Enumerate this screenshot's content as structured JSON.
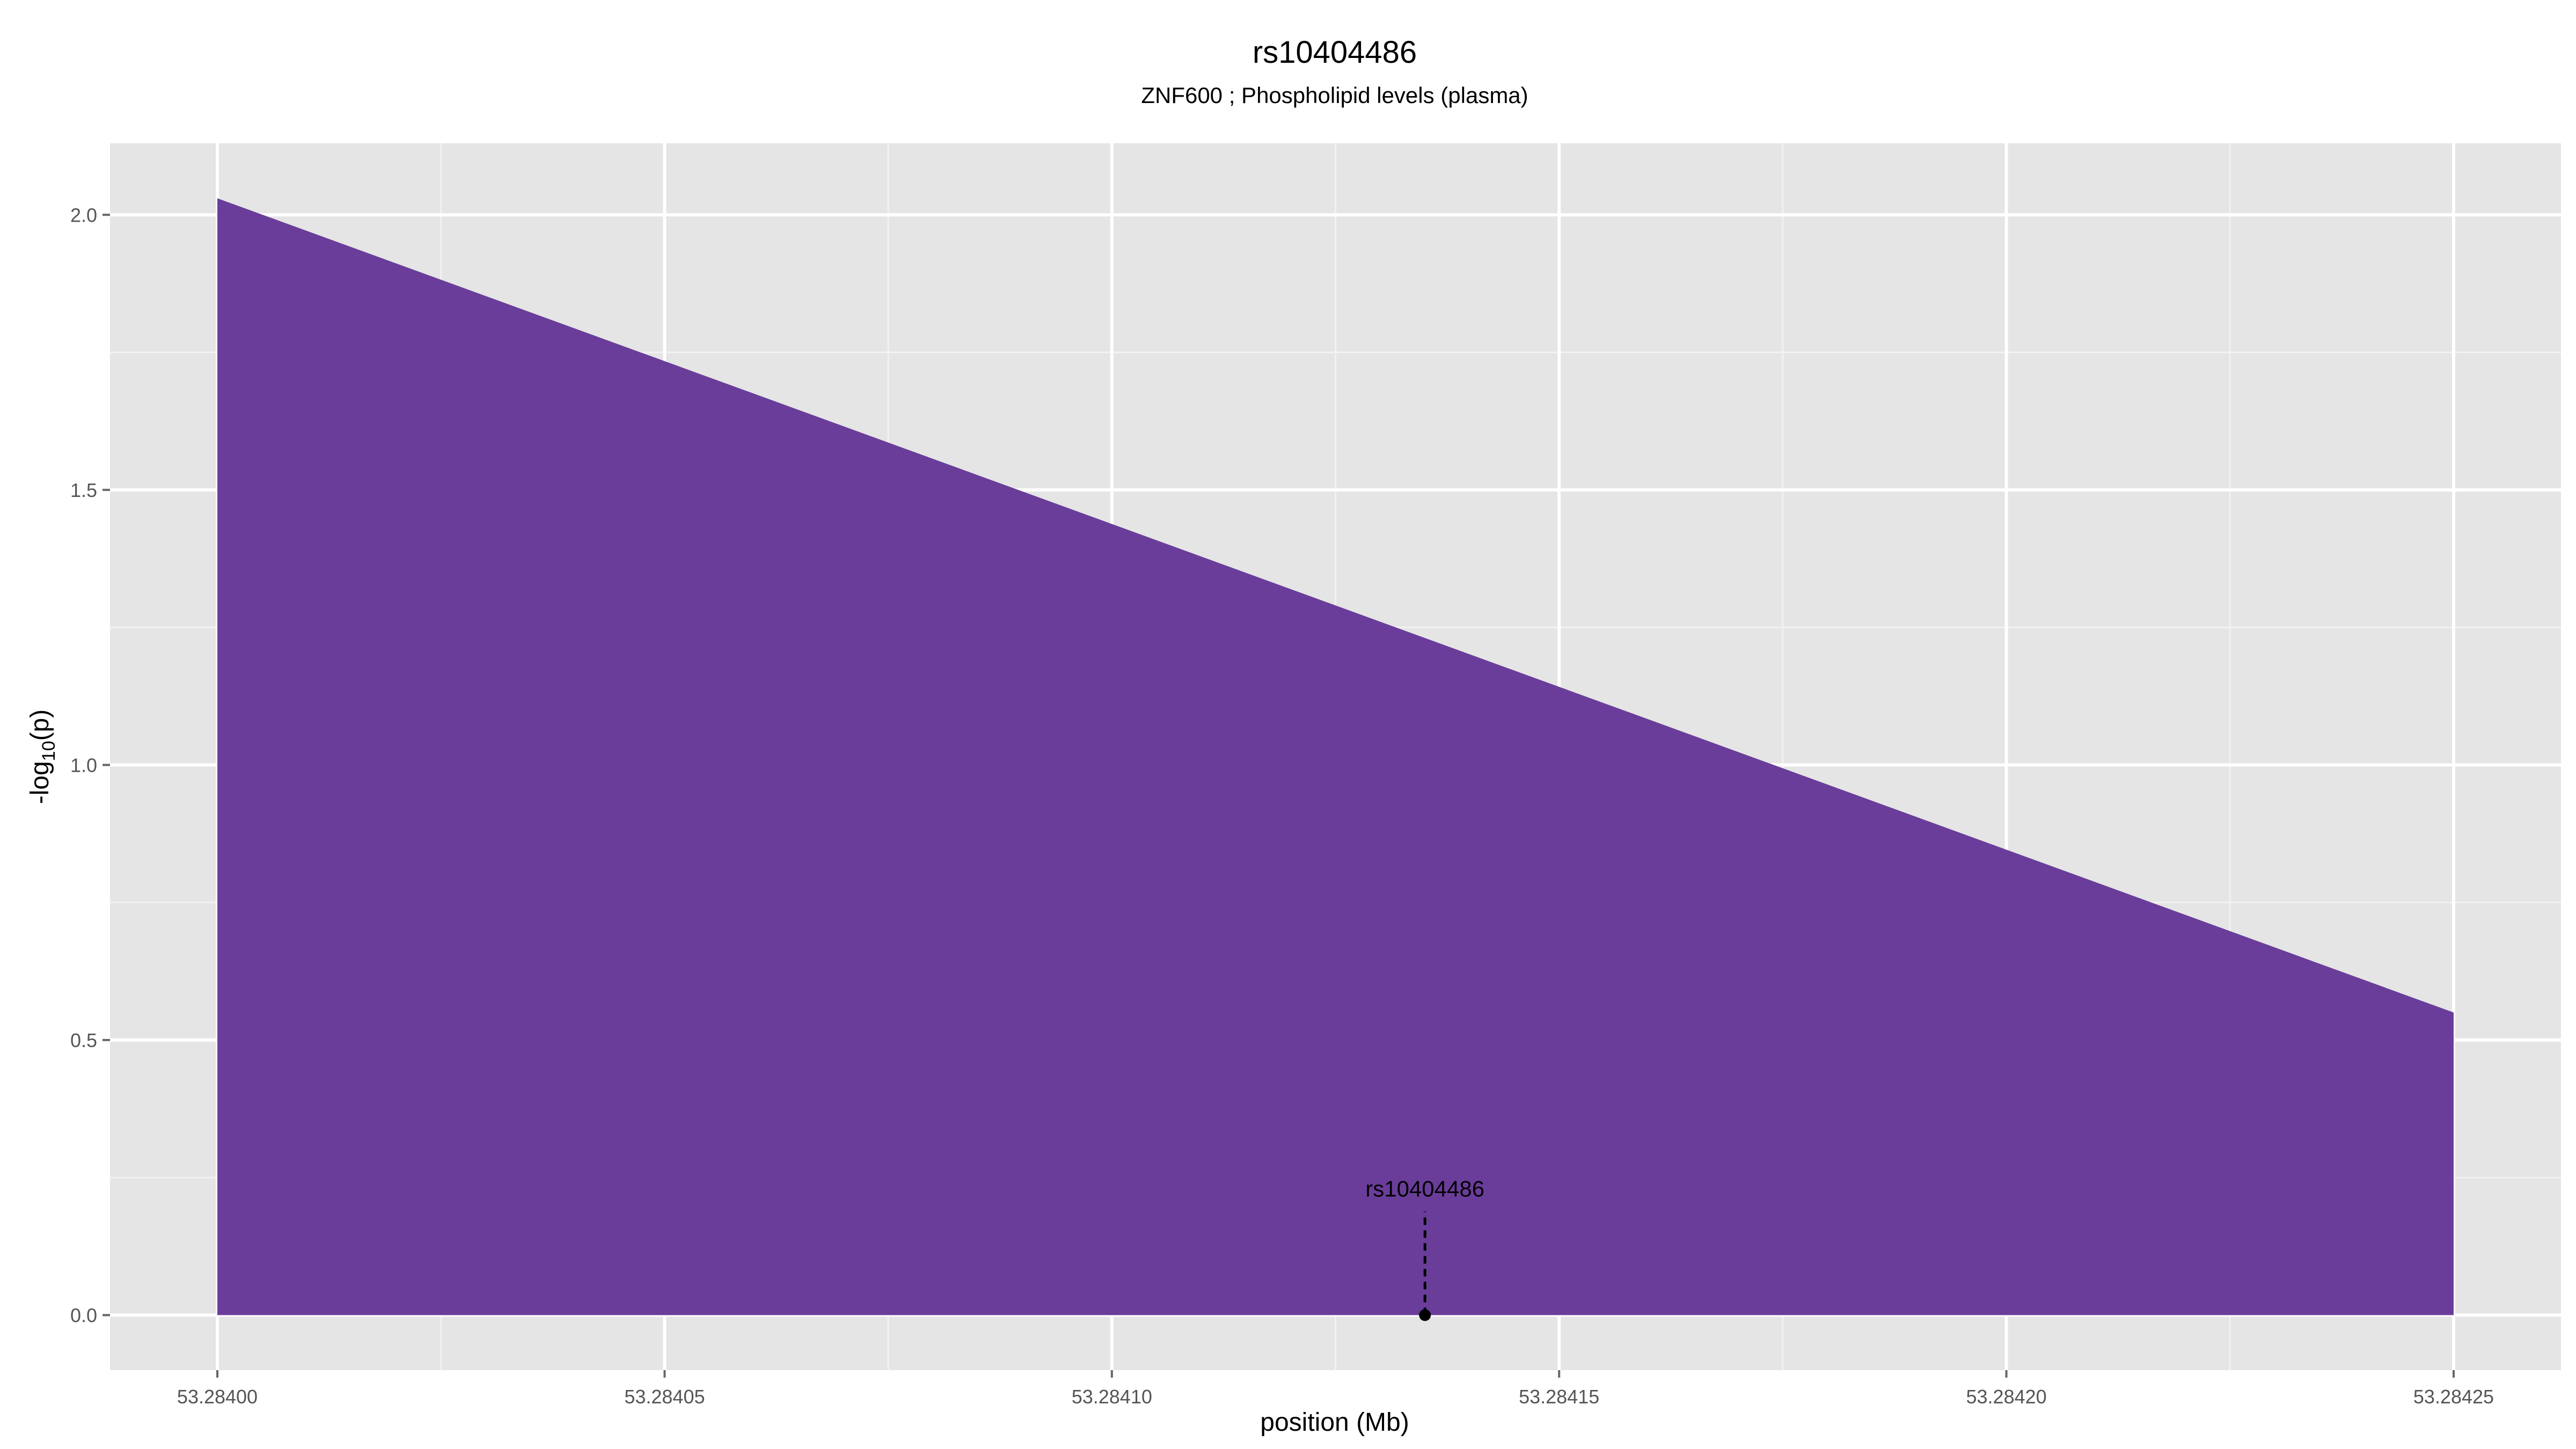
{
  "chart_data": {
    "type": "area",
    "title": "rs10404486",
    "subtitle": "ZNF600 ; Phospholipid levels (plasma)",
    "xlabel": "position (Mb)",
    "ylabel_prefix": "-log",
    "ylabel_sub": "10",
    "ylabel_suffix": "(p)",
    "x_ticks": [
      "53.28400",
      "53.28405",
      "53.28410",
      "53.28415",
      "53.28420",
      "53.28425"
    ],
    "x_tick_values": [
      53.284,
      53.28405,
      53.2841,
      53.28415,
      53.2842,
      53.28425
    ],
    "y_ticks": [
      "0.0",
      "0.5",
      "1.0",
      "1.5",
      "2.0"
    ],
    "y_tick_values": [
      0,
      0.5,
      1.0,
      1.5,
      2.0
    ],
    "xlim": [
      53.283988,
      53.284262
    ],
    "ylim": [
      -0.1,
      2.13
    ],
    "grid": true,
    "series": [
      {
        "x": [
          53.284,
          53.28425
        ],
        "y": [
          2.03,
          0.55
        ],
        "fill": "#6a3d9a"
      }
    ],
    "annotation": {
      "label": "rs10404486",
      "x": 53.284135,
      "y": 0.0,
      "label_y": 0.2
    },
    "colors": {
      "panel": "#e5e5e5",
      "grid_major": "#ffffff",
      "grid_minor": "#f2f2f2",
      "area": "#6a3d9a"
    }
  }
}
